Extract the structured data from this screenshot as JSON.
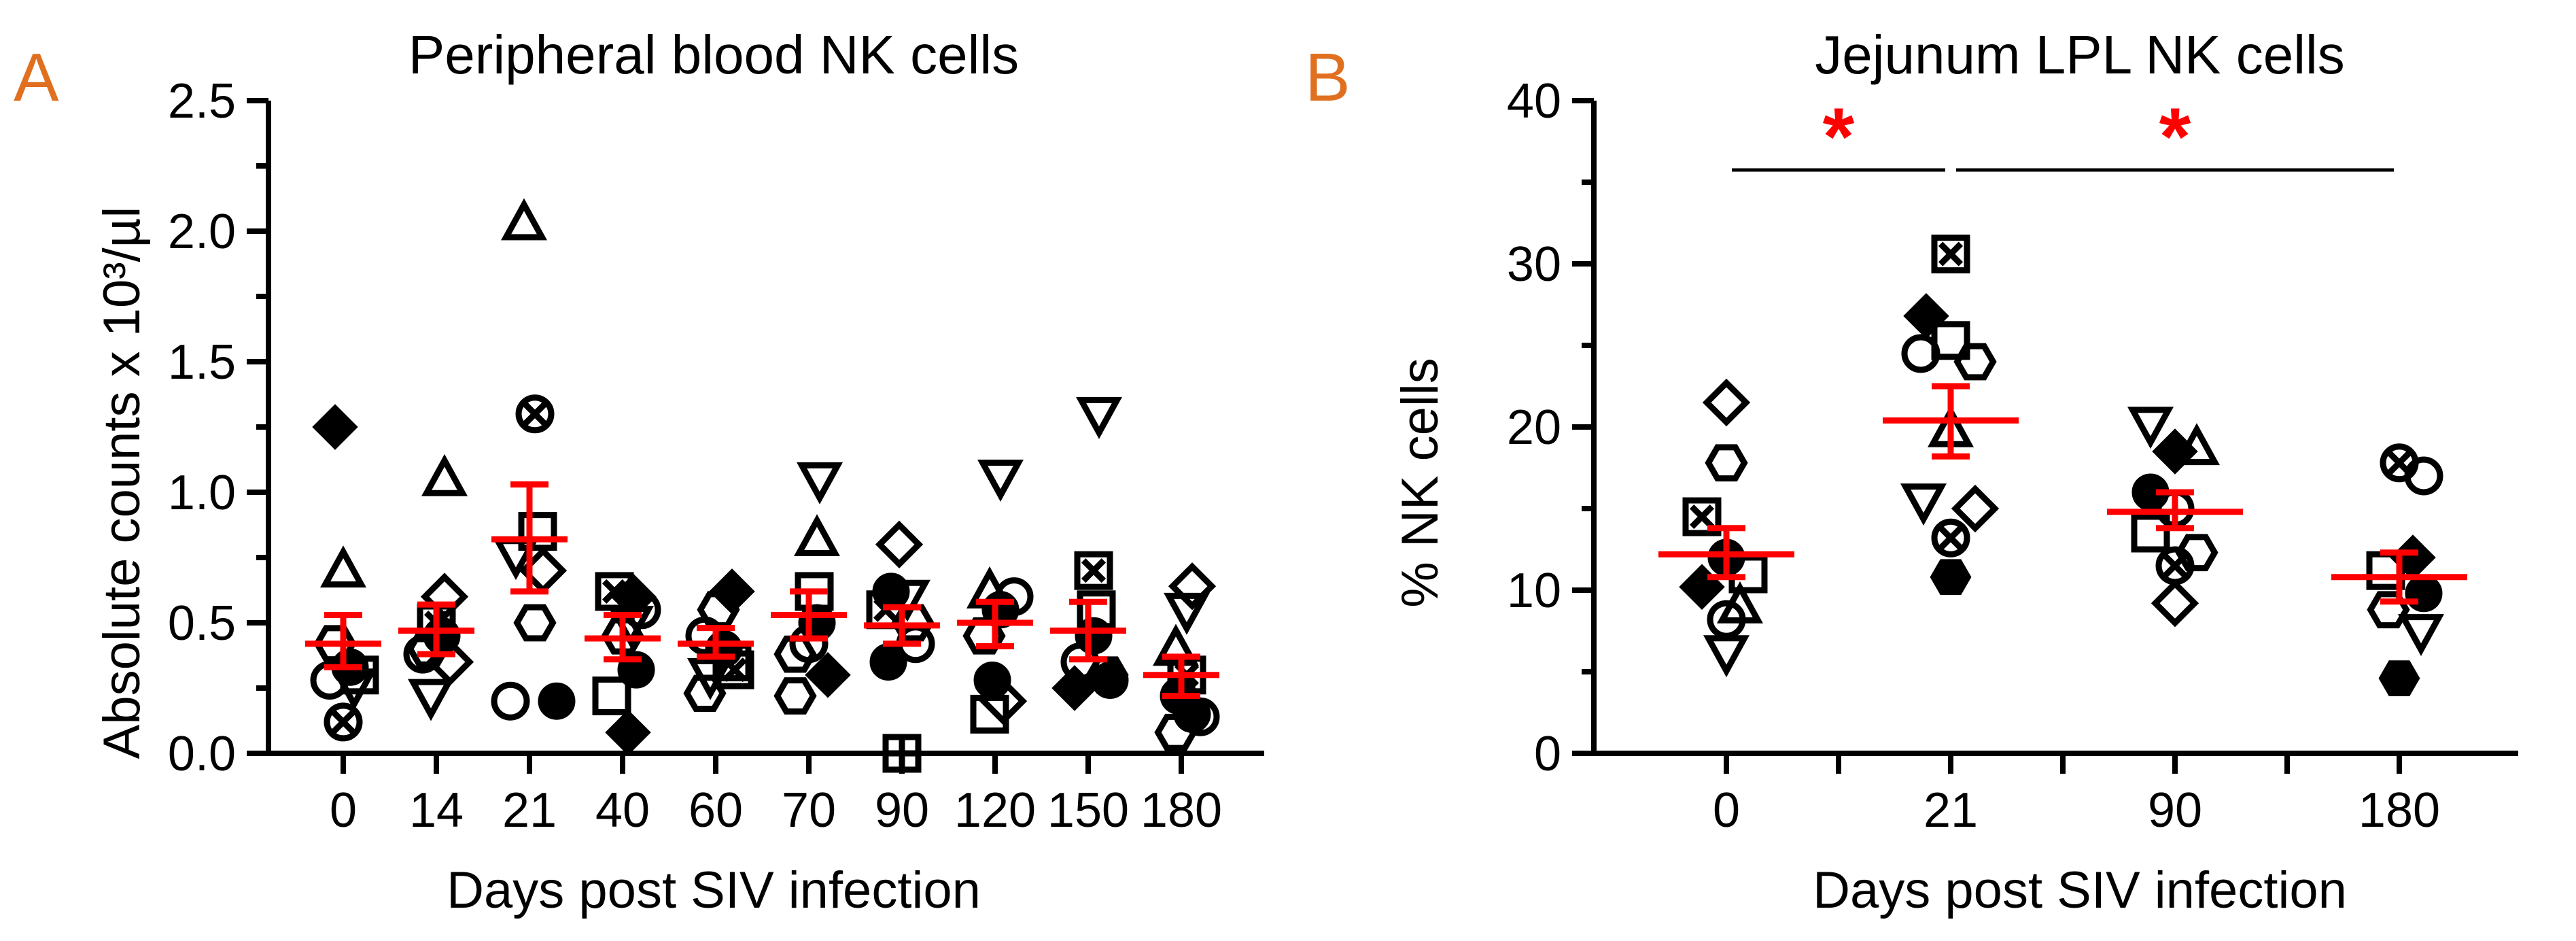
{
  "chart_data": [
    {
      "panel_label": "A",
      "type": "scatter",
      "title": "Peripheral blood NK cells",
      "xlabel": "Days post SIV infection",
      "ylabel": "Absolute counts x 10³/µl",
      "ylim": [
        0,
        2.5
      ],
      "yticks": [
        "0.0",
        "0.5",
        "1.0",
        "1.5",
        "2.0",
        "2.5"
      ],
      "categories": [
        "0",
        "14",
        "21",
        "40",
        "60",
        "70",
        "90",
        "120",
        "150",
        "180"
      ],
      "groups": [
        {
          "category": "0",
          "mean": 0.42,
          "sem": [
            0.33,
            0.53
          ],
          "points": [
            {
              "v": 1.25,
              "m": "diamond-filled",
              "o": -6
            },
            {
              "v": 0.7,
              "m": "triangle",
              "o": 0
            },
            {
              "v": 0.42,
              "m": "hexagon",
              "o": -6
            },
            {
              "v": 0.33,
              "m": "circle-filled",
              "o": 5
            },
            {
              "v": 0.3,
              "m": "square",
              "o": 12
            },
            {
              "v": 0.28,
              "m": "circle",
              "o": -10
            },
            {
              "v": 0.26,
              "m": "triangle-down",
              "o": 8
            },
            {
              "v": 0.12,
              "m": "circle-x",
              "o": 0
            }
          ]
        },
        {
          "category": "14",
          "mean": 0.47,
          "sem": [
            0.38,
            0.57
          ],
          "points": [
            {
              "v": 1.05,
              "m": "triangle",
              "o": 6
            },
            {
              "v": 0.6,
              "m": "diamond",
              "o": 6
            },
            {
              "v": 0.5,
              "m": "square-x",
              "o": 0
            },
            {
              "v": 0.45,
              "m": "circle-filled",
              "o": 4
            },
            {
              "v": 0.4,
              "m": "hexagon",
              "o": -6
            },
            {
              "v": 0.38,
              "m": "circle",
              "o": -10
            },
            {
              "v": 0.35,
              "m": "diamond",
              "o": 10
            },
            {
              "v": 0.22,
              "m": "triangle-down",
              "o": -4
            }
          ]
        },
        {
          "category": "21",
          "mean": 0.82,
          "sem": [
            0.62,
            1.03
          ],
          "points": [
            {
              "v": 2.03,
              "m": "triangle",
              "o": -4
            },
            {
              "v": 1.3,
              "m": "circle-x",
              "o": 4
            },
            {
              "v": 0.85,
              "m": "square",
              "o": 6
            },
            {
              "v": 0.76,
              "m": "triangle-down",
              "o": -10
            },
            {
              "v": 0.7,
              "m": "diamond",
              "o": 10
            },
            {
              "v": 0.5,
              "m": "hexagon",
              "o": 4
            },
            {
              "v": 0.2,
              "m": "circle",
              "o": -14
            },
            {
              "v": 0.2,
              "m": "circle-filled",
              "o": 20
            }
          ]
        },
        {
          "category": "40",
          "mean": 0.44,
          "sem": [
            0.36,
            0.53
          ],
          "points": [
            {
              "v": 0.62,
              "m": "square-x",
              "o": -6
            },
            {
              "v": 0.6,
              "m": "diamond-filled",
              "o": 8
            },
            {
              "v": 0.55,
              "m": "circle",
              "o": 14
            },
            {
              "v": 0.5,
              "m": "triangle-down",
              "o": 6
            },
            {
              "v": 0.45,
              "m": "hexagon",
              "o": 0
            },
            {
              "v": 0.32,
              "m": "circle-filled",
              "o": 10
            },
            {
              "v": 0.22,
              "m": "square",
              "o": -8
            },
            {
              "v": 0.08,
              "m": "diamond-filled",
              "o": 4
            }
          ]
        },
        {
          "category": "60",
          "mean": 0.42,
          "sem": [
            0.37,
            0.48
          ],
          "points": [
            {
              "v": 0.62,
              "m": "diamond-filled",
              "o": 12
            },
            {
              "v": 0.55,
              "m": "hexagon",
              "o": 2
            },
            {
              "v": 0.45,
              "m": "circle",
              "o": -8
            },
            {
              "v": 0.4,
              "m": "circle-filled",
              "o": 6
            },
            {
              "v": 0.35,
              "m": "square",
              "o": 12
            },
            {
              "v": 0.3,
              "m": "triangle-down",
              "o": -4
            },
            {
              "v": 0.23,
              "m": "hexagon",
              "o": -8
            },
            {
              "v": 0.32,
              "m": "square-x",
              "o": 14
            }
          ]
        },
        {
          "category": "70",
          "mean": 0.53,
          "sem": [
            0.44,
            0.62
          ],
          "points": [
            {
              "v": 1.05,
              "m": "triangle-down",
              "o": 8
            },
            {
              "v": 0.82,
              "m": "triangle",
              "o": 6
            },
            {
              "v": 0.62,
              "m": "square",
              "o": 4
            },
            {
              "v": 0.5,
              "m": "circle-filled",
              "o": 6
            },
            {
              "v": 0.42,
              "m": "circle",
              "o": 0
            },
            {
              "v": 0.38,
              "m": "hexagon",
              "o": -10
            },
            {
              "v": 0.3,
              "m": "diamond-filled",
              "o": 14
            },
            {
              "v": 0.22,
              "m": "hexagon",
              "o": -10
            }
          ]
        },
        {
          "category": "90",
          "mean": 0.49,
          "sem": [
            0.42,
            0.56
          ],
          "points": [
            {
              "v": 0.8,
              "m": "diamond",
              "o": -2
            },
            {
              "v": 0.62,
              "m": "circle-filled",
              "o": -8
            },
            {
              "v": 0.6,
              "m": "triangle-down",
              "o": 4
            },
            {
              "v": 0.55,
              "m": "square-x",
              "o": -12
            },
            {
              "v": 0.5,
              "m": "hexagon",
              "o": 8
            },
            {
              "v": 0.42,
              "m": "circle",
              "o": 10
            },
            {
              "v": 0.35,
              "m": "circle-filled",
              "o": -10
            },
            {
              "v": 0.0,
              "m": "square-plus",
              "o": 0
            }
          ]
        },
        {
          "category": "120",
          "mean": 0.5,
          "sem": [
            0.41,
            0.58
          ],
          "points": [
            {
              "v": 1.06,
              "m": "triangle-down",
              "o": 4
            },
            {
              "v": 0.62,
              "m": "triangle",
              "o": -4
            },
            {
              "v": 0.6,
              "m": "circle",
              "o": 14
            },
            {
              "v": 0.55,
              "m": "circle-filled",
              "o": 4
            },
            {
              "v": 0.45,
              "m": "hexagon",
              "o": -8
            },
            {
              "v": 0.28,
              "m": "circle-filled",
              "o": -2
            },
            {
              "v": 0.2,
              "m": "diamond",
              "o": 6
            },
            {
              "v": 0.15,
              "m": "square",
              "o": -4
            }
          ]
        },
        {
          "category": "150",
          "mean": 0.47,
          "sem": [
            0.36,
            0.58
          ],
          "points": [
            {
              "v": 1.3,
              "m": "triangle-down",
              "o": 8
            },
            {
              "v": 0.7,
              "m": "square-x",
              "o": 4
            },
            {
              "v": 0.55,
              "m": "square",
              "o": 6
            },
            {
              "v": 0.45,
              "m": "circle-filled",
              "o": 4
            },
            {
              "v": 0.35,
              "m": "circle",
              "o": -6
            },
            {
              "v": 0.3,
              "m": "hexagon",
              "o": 14
            },
            {
              "v": 0.25,
              "m": "diamond-filled",
              "o": -10
            },
            {
              "v": 0.28,
              "m": "circle-filled",
              "o": 16
            }
          ]
        },
        {
          "category": "180",
          "mean": 0.3,
          "sem": [
            0.22,
            0.37
          ],
          "points": [
            {
              "v": 0.64,
              "m": "diamond",
              "o": 8
            },
            {
              "v": 0.55,
              "m": "triangle-down",
              "o": 4
            },
            {
              "v": 0.4,
              "m": "triangle",
              "o": -4
            },
            {
              "v": 0.3,
              "m": "square-x",
              "o": 4
            },
            {
              "v": 0.22,
              "m": "circle-filled",
              "o": -2
            },
            {
              "v": 0.15,
              "m": "circle-filled",
              "o": 8
            },
            {
              "v": 0.14,
              "m": "circle",
              "o": 14
            },
            {
              "v": 0.08,
              "m": "hexagon",
              "o": -4
            }
          ]
        }
      ]
    },
    {
      "panel_label": "B",
      "type": "scatter",
      "title": "Jejunum LPL NK cells",
      "xlabel": "Days post SIV infection",
      "ylabel": "% NK cells",
      "ylim": [
        0,
        40
      ],
      "yticks": [
        "0",
        "10",
        "20",
        "30",
        "40"
      ],
      "categories": [
        "0",
        "21",
        "90",
        "180"
      ],
      "significance": [
        {
          "from": "0",
          "to": "21",
          "label": "*"
        },
        {
          "from": "21",
          "to": "180",
          "label": "*"
        }
      ],
      "groups": [
        {
          "category": "0",
          "mean": 12.2,
          "sem": [
            10.8,
            13.8
          ],
          "points": [
            {
              "v": 21.5,
              "m": "diamond",
              "o": 0
            },
            {
              "v": 17.8,
              "m": "hexagon",
              "o": 0
            },
            {
              "v": 14.5,
              "m": "square-x",
              "o": -18
            },
            {
              "v": 12.0,
              "m": "circle-filled",
              "o": 0
            },
            {
              "v": 11.0,
              "m": "square",
              "o": 16
            },
            {
              "v": 10.2,
              "m": "diamond-filled",
              "o": -18
            },
            {
              "v": 9.0,
              "m": "triangle",
              "o": 10
            },
            {
              "v": 8.2,
              "m": "circle",
              "o": 0
            },
            {
              "v": 6.2,
              "m": "triangle-down",
              "o": 0
            }
          ]
        },
        {
          "category": "21",
          "mean": 20.4,
          "sem": [
            18.2,
            22.5
          ],
          "points": [
            {
              "v": 30.6,
              "m": "square-x",
              "o": 0
            },
            {
              "v": 26.8,
              "m": "diamond-filled",
              "o": -18
            },
            {
              "v": 25.3,
              "m": "square",
              "o": 0
            },
            {
              "v": 24.5,
              "m": "circle",
              "o": -22
            },
            {
              "v": 24.0,
              "m": "hexagon",
              "o": 18
            },
            {
              "v": 19.8,
              "m": "triangle",
              "o": 0
            },
            {
              "v": 15.5,
              "m": "triangle-down",
              "o": -20
            },
            {
              "v": 15.0,
              "m": "diamond",
              "o": 18
            },
            {
              "v": 13.2,
              "m": "circle-x",
              "o": 0
            },
            {
              "v": 10.8,
              "m": "hexagon-filled",
              "o": 0
            }
          ]
        },
        {
          "category": "90",
          "mean": 14.8,
          "sem": [
            13.8,
            16.0
          ],
          "points": [
            {
              "v": 20.2,
              "m": "triangle-down",
              "o": -18
            },
            {
              "v": 18.7,
              "m": "triangle",
              "o": 16
            },
            {
              "v": 18.5,
              "m": "diamond-filled",
              "o": 0
            },
            {
              "v": 16.0,
              "m": "circle-filled",
              "o": -18
            },
            {
              "v": 15.0,
              "m": "circle",
              "o": 0
            },
            {
              "v": 13.5,
              "m": "square",
              "o": -18
            },
            {
              "v": 12.3,
              "m": "hexagon",
              "o": 16
            },
            {
              "v": 11.5,
              "m": "circle-x",
              "o": 0
            },
            {
              "v": 9.2,
              "m": "diamond",
              "o": 0
            }
          ]
        },
        {
          "category": "180",
          "mean": 10.8,
          "sem": [
            9.3,
            12.3
          ],
          "points": [
            {
              "v": 17.8,
              "m": "circle-x",
              "o": 0
            },
            {
              "v": 17.0,
              "m": "circle",
              "o": 18
            },
            {
              "v": 12.0,
              "m": "diamond-filled",
              "o": 10
            },
            {
              "v": 11.2,
              "m": "square",
              "o": -10
            },
            {
              "v": 9.8,
              "m": "circle-filled",
              "o": 18
            },
            {
              "v": 8.8,
              "m": "hexagon",
              "o": -8
            },
            {
              "v": 7.5,
              "m": "triangle-down",
              "o": 16
            },
            {
              "v": 4.6,
              "m": "hexagon-filled",
              "o": 0
            }
          ]
        }
      ]
    }
  ],
  "colors": {
    "mean_sem": "#ff0000",
    "panel_letter": "#e07020",
    "significance": "#ff0000",
    "points": "#000000"
  }
}
